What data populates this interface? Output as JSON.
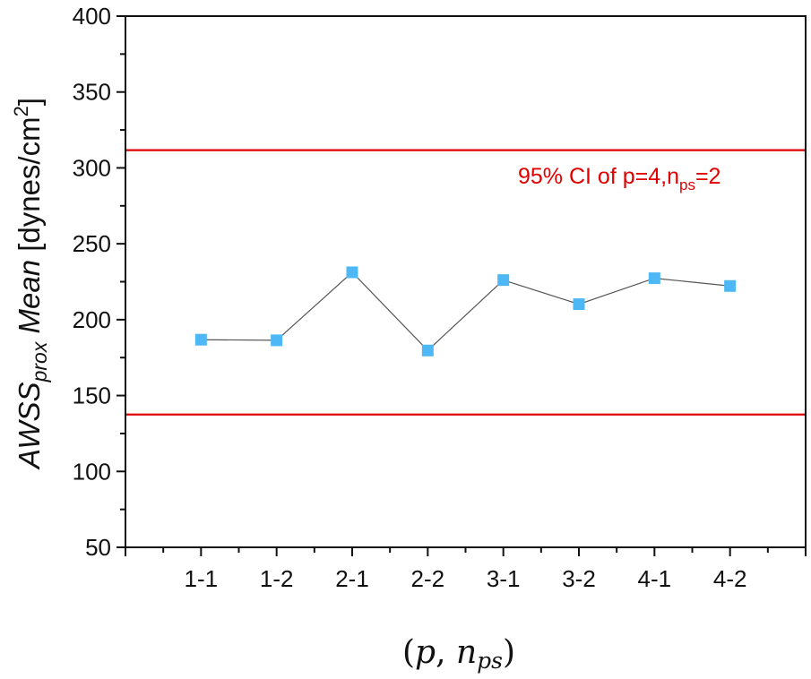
{
  "chart_data": {
    "type": "line",
    "title": "",
    "xlabel": "(p, n_ps)",
    "xlabel_parts": {
      "open": "(",
      "p": "p",
      "comma": ", ",
      "n": "n",
      "sub": "ps",
      "close": ")"
    },
    "ylabel": "AWSS_prox Mean [dyness/cm^2]",
    "ylabel_parts": {
      "main": "AWSS",
      "sub": "prox",
      "italic_word": " Mean",
      "unit_pre": " [dynes/cm",
      "sup": "2",
      "unit_post": "]"
    },
    "categories": [
      "1-1",
      "1-2",
      "2-1",
      "2-2",
      "3-1",
      "3-2",
      "4-1",
      "4-2"
    ],
    "series": [
      {
        "name": "AWSS_prox Mean",
        "values": [
          186.8,
          186.4,
          231.2,
          179.7,
          226.1,
          210.2,
          227.3,
          222.2
        ],
        "marker": "square",
        "marker_color": "#4DB8F5",
        "line_color": "#555555"
      }
    ],
    "reference_lines": [
      {
        "name": "95% CI upper",
        "value": 311.7,
        "color": "#E00000"
      },
      {
        "name": "95% CI lower",
        "value": 137.5,
        "color": "#E00000"
      }
    ],
    "annotation": {
      "text_main": "95% CI of p=4,n",
      "text_sub": "ps",
      "text_end": "=2",
      "color": "#E00000"
    },
    "ylim": [
      50,
      400
    ],
    "yticks": [
      50,
      100,
      150,
      200,
      250,
      300,
      350,
      400
    ],
    "xlim": [
      0,
      9
    ],
    "grid": false,
    "legend": "none"
  }
}
